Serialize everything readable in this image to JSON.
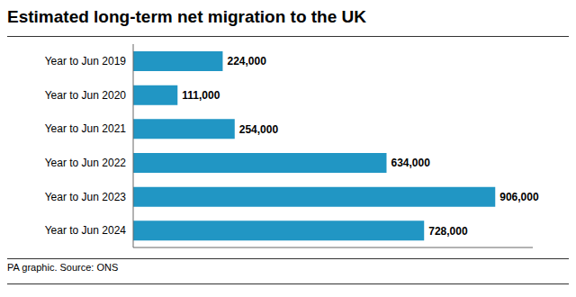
{
  "chart_data": {
    "type": "bar",
    "orientation": "horizontal",
    "title": "Estimated long-term net migration to the UK",
    "annotations": [
      "PA graphic. Source: ONS"
    ],
    "categories": [
      "Year to Jun 2019",
      "Year to Jun 2020",
      "Year to Jun 2021",
      "Year to Jun 2022",
      "Year to Jun 2023",
      "Year to Jun 2024"
    ],
    "values": [
      224000,
      111000,
      254000,
      634000,
      906000,
      728000
    ],
    "value_labels": [
      "224,000",
      "111,000",
      "254,000",
      "634,000",
      "906,000",
      "728,000"
    ],
    "data_labels": true,
    "color": "#2196C4",
    "xlim": [
      0,
      1000000
    ],
    "grid": false,
    "tick_labels": "y"
  }
}
